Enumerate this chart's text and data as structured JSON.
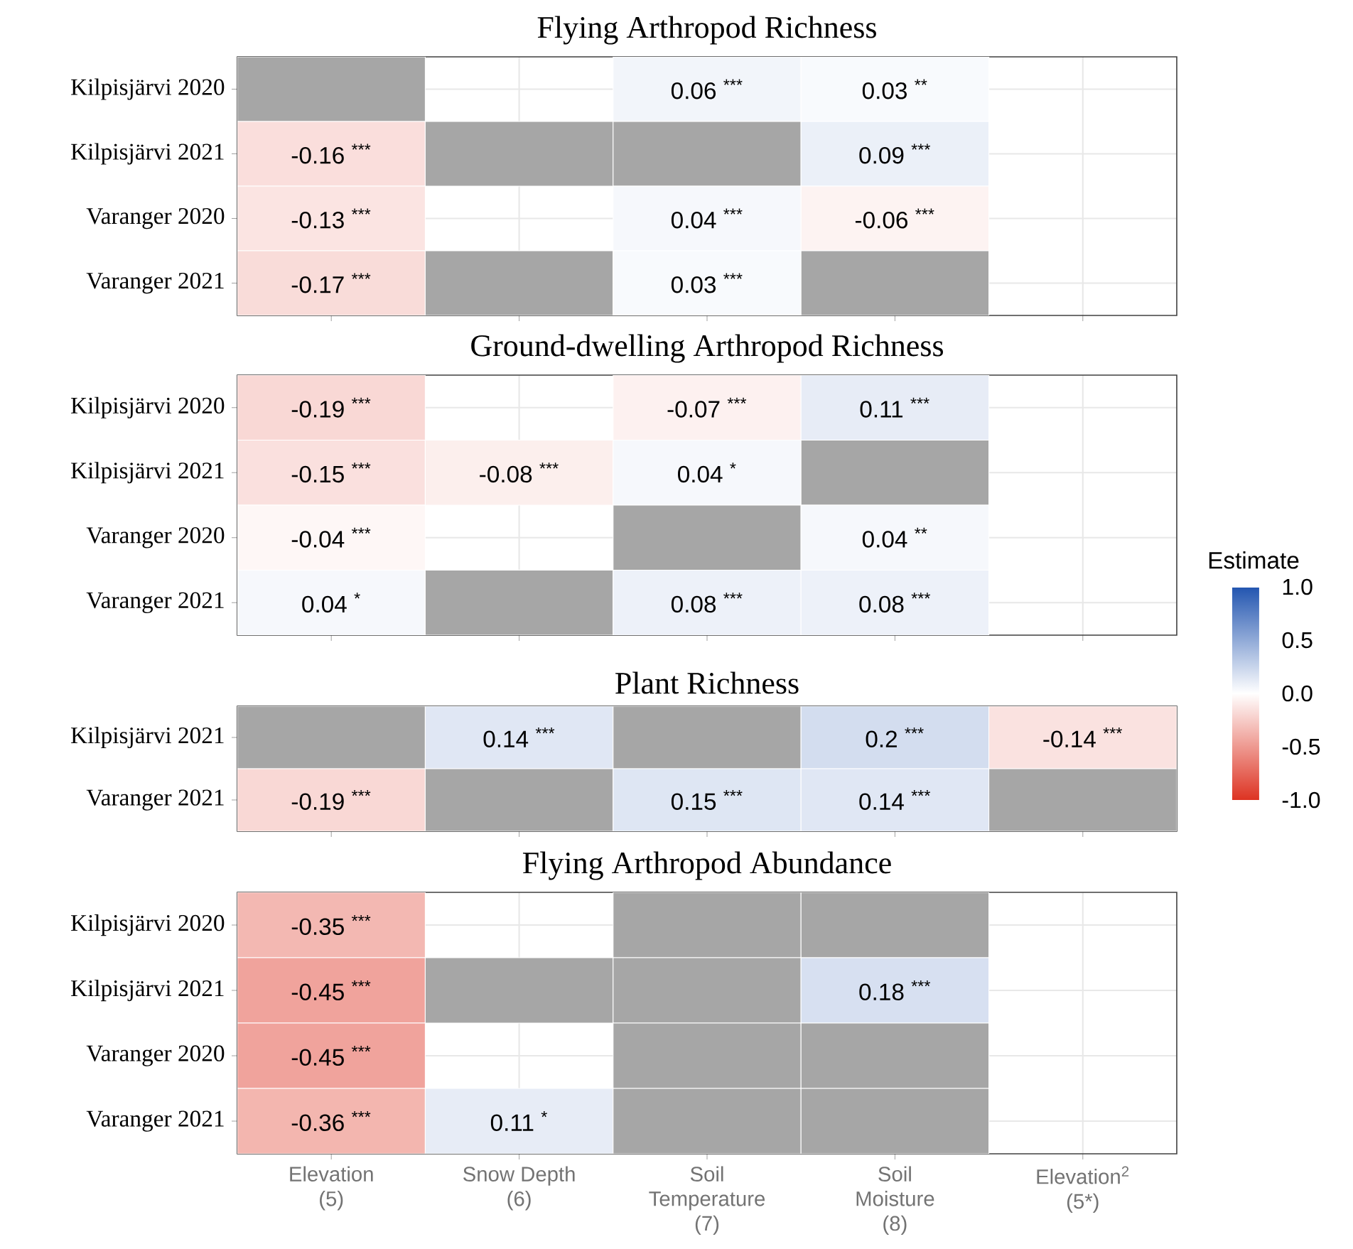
{
  "chart_data": [
    {
      "type": "heatmap",
      "title": "Flying Arthropod Richness",
      "categories": [
        null,
        null,
        null,
        null,
        null
      ],
      "y_categories": [
        "Kilpisjärvi 2020",
        "Kilpisjärvi 2021",
        "Varanger 2020",
        "Varanger 2021"
      ],
      "cells": [
        [
          null,
          null,
          0.06,
          0.03,
          null
        ],
        [
          -0.16,
          null,
          null,
          0.09,
          null
        ],
        [
          -0.13,
          null,
          0.04,
          -0.06,
          null
        ],
        [
          -0.17,
          null,
          0.03,
          null,
          null
        ]
      ],
      "cell_labels": [
        [
          null,
          null,
          "0.06 $^{***}$",
          "0.03 $^{**}$",
          null
        ],
        [
          "-0.16 $^{***}$",
          null,
          null,
          "0.09 $^{***}$",
          null
        ],
        [
          "-0.13 $^{***}$",
          null,
          "0.04 $^{***}$",
          "-0.06 $^{***}$",
          null
        ],
        [
          "-0.17 $^{***}$",
          null,
          "0.03 $^{***}$",
          null,
          null
        ]
      ],
      "colors": [
        [
          "#a6a6a6",
          null,
          null,
          null,
          null
        ],
        [
          null,
          "#a6a6a6",
          "#a6a6a6",
          null,
          null
        ],
        [
          null,
          null,
          null,
          null,
          null
        ],
        [
          null,
          "#a6a6a6",
          null,
          "#a6a6a6",
          null
        ]
      ],
      "grid": true,
      "tick_labels": "y"
    },
    {
      "type": "heatmap",
      "title": "Ground-dwelling Arthropod Richness",
      "categories": [
        null,
        null,
        null,
        null,
        null
      ],
      "y_categories": [
        "Kilpisjärvi 2020",
        "Kilpisjärvi 2021",
        "Varanger 2020",
        "Varanger 2021"
      ],
      "cells": [
        [
          -0.19,
          null,
          -0.07,
          0.11,
          null
        ],
        [
          -0.15,
          -0.08,
          0.04,
          null,
          null
        ],
        [
          -0.04,
          null,
          null,
          0.04,
          null
        ],
        [
          0.04,
          null,
          0.08,
          0.08,
          null
        ]
      ],
      "cell_labels": [
        [
          "-0.19 $^{***}$",
          null,
          "-0.07 $^{***}$",
          "0.11 $^{***}$",
          null
        ],
        [
          "-0.15 $^{***}$",
          "-0.08 $^{***}$",
          "0.04 $^{*}$",
          null,
          null
        ],
        [
          "-0.04 $^{***}$",
          null,
          null,
          "0.04 $^{**}$",
          null
        ],
        [
          "0.04 $^{*}$",
          null,
          "0.08 $^{***}$",
          "0.08 $^{***}$",
          null
        ]
      ],
      "colors": [
        [
          null,
          null,
          null,
          null,
          null
        ],
        [
          null,
          null,
          null,
          "#a6a6a6",
          null
        ],
        [
          null,
          null,
          "#a6a6a6",
          null,
          null
        ],
        [
          null,
          "#a6a6a6",
          null,
          null,
          null
        ]
      ],
      "grid": true,
      "tick_labels": "y"
    },
    {
      "type": "heatmap",
      "title": "Plant Richness",
      "categories": [
        null,
        null,
        null,
        null,
        null
      ],
      "y_categories": [
        "Kilpisjärvi 2021",
        "Varanger 2021"
      ],
      "cells": [
        [
          null,
          0.14,
          null,
          0.2,
          -0.14
        ],
        [
          -0.19,
          null,
          0.15,
          0.14,
          null
        ]
      ],
      "cell_labels": [
        [
          null,
          "0.14 $^{***}$",
          null,
          "0.2 $^{***}$",
          "-0.14 $^{***}$"
        ],
        [
          "-0.19 $^{***}$",
          null,
          "0.15 $^{***}$",
          "0.14 $^{***}$",
          null
        ]
      ],
      "colors": [
        [
          "#a6a6a6",
          null,
          "#a6a6a6",
          null,
          null
        ],
        [
          null,
          "#a6a6a6",
          null,
          null,
          "#a6a6a6"
        ]
      ],
      "grid": true,
      "tick_labels": "y",
      "clabel": "Estimate",
      "clim": [
        -1,
        1
      ],
      "cticks": [
        {
          "value": -1,
          "label": "-1.0"
        },
        {
          "value": -0.5,
          "label": "-0.5"
        },
        {
          "value": 0,
          "label": "0.0"
        },
        {
          "value": 0.5,
          "label": "0.5"
        },
        {
          "value": 1,
          "label": "1.0"
        }
      ]
    },
    {
      "type": "heatmap",
      "title": "Flying Arthropod Abundance",
      "categories": [
        "Elevation\n(5)",
        "Snow Depth\n(6)",
        "Soil\nTemperature\n(7)",
        "Soil\nMoisture\n(8)",
        "Elevation$^{2}$\n(5*)"
      ],
      "y_categories": [
        "Kilpisjärvi 2020",
        "Kilpisjärvi 2021",
        "Varanger 2020",
        "Varanger 2021"
      ],
      "cells": [
        [
          -0.35,
          null,
          null,
          null,
          null
        ],
        [
          -0.45,
          null,
          null,
          0.18,
          null
        ],
        [
          -0.45,
          null,
          null,
          null,
          null
        ],
        [
          -0.36,
          0.11,
          null,
          null,
          null
        ]
      ],
      "cell_labels": [
        [
          "-0.35 $^{***}$",
          null,
          null,
          null,
          null
        ],
        [
          "-0.45 $^{***}$",
          null,
          null,
          "0.18 $^{***}$",
          null
        ],
        [
          "-0.45 $^{***}$",
          null,
          null,
          null,
          null
        ],
        [
          "-0.36 $^{***}$",
          "0.11 $^{*}$",
          null,
          null,
          null
        ]
      ],
      "colors": [
        [
          null,
          null,
          "#a6a6a6",
          "#a6a6a6",
          null
        ],
        [
          null,
          "#a6a6a6",
          "#a6a6a6",
          null,
          null
        ],
        [
          null,
          null,
          "#a6a6a6",
          "#a6a6a6",
          null
        ],
        [
          null,
          null,
          "#a6a6a6",
          "#a6a6a6",
          null
        ]
      ],
      "grid": true
    }
  ]
}
